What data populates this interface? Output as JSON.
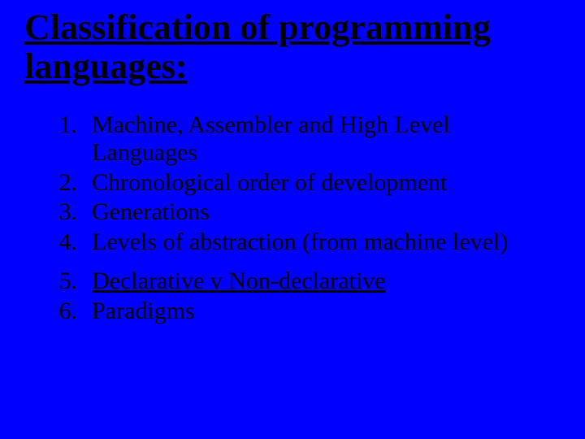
{
  "slide": {
    "background_color": "#0000ff",
    "text_color": "#000000",
    "font_family": "Times New Roman",
    "title": {
      "text": "Classification of programming languages:",
      "font_size": 44,
      "font_weight": "bold",
      "underline": true
    },
    "list": {
      "type": "ordered",
      "font_size": 30,
      "items": [
        {
          "number": "1.",
          "text": "Machine, Assembler and High Level Languages",
          "underline": false
        },
        {
          "number": "2.",
          "text": "Chronological order of development",
          "underline": false
        },
        {
          "number": "3.",
          "text": "Generations",
          "underline": false
        },
        {
          "number": "4.",
          "text": "Levels of abstraction (from machine level)",
          "underline": false
        },
        {
          "number": "5.",
          "text": "Declarative v Non-declarative",
          "underline": true
        },
        {
          "number": "6.",
          "text": "Paradigms",
          "underline": false
        }
      ]
    }
  }
}
